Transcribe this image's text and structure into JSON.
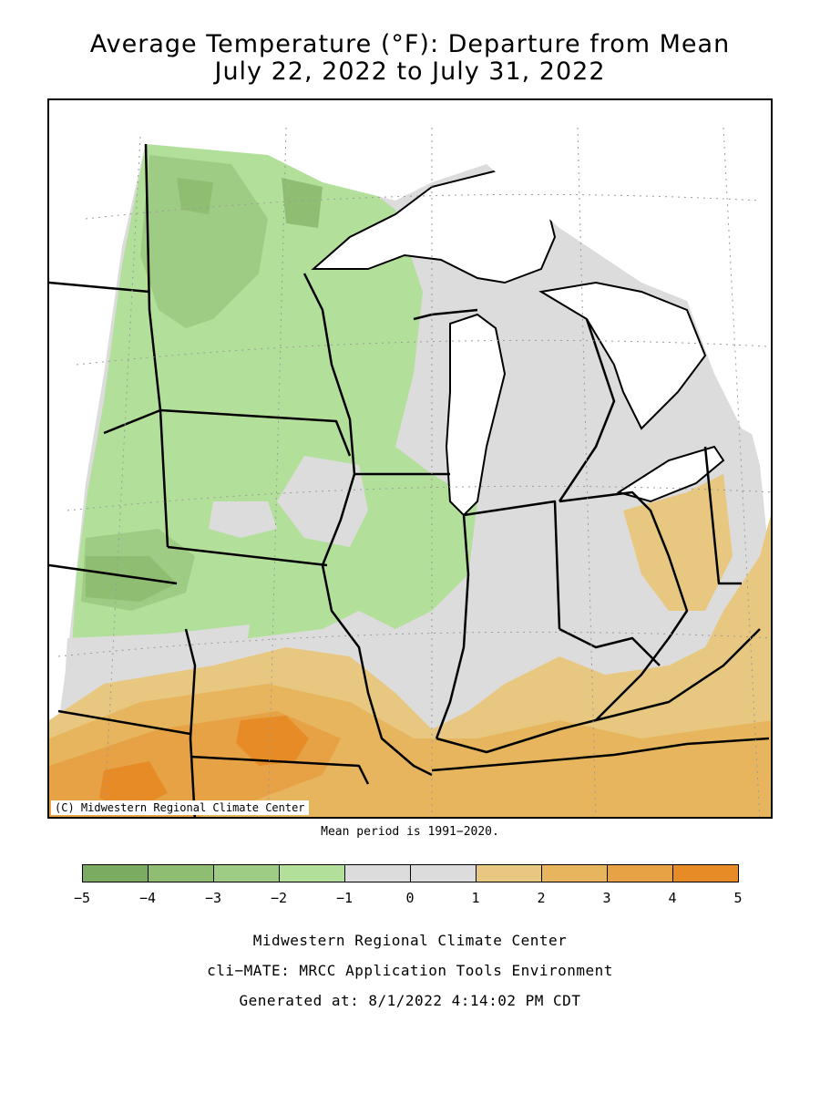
{
  "title": {
    "line1": "Average Temperature (°F): Departure from Mean",
    "line2": "July 22, 2022 to July 31, 2022"
  },
  "map": {
    "copyright": "(C) Midwestern Regional Climate Center",
    "region": "Upper Midwest / Great Lakes",
    "water_color": "#ffffff",
    "boundary_color": "#000000"
  },
  "mean_note": "Mean period is 1991−2020.",
  "legend": {
    "bins": [
      {
        "from": -5,
        "to": -4,
        "color": "#7aab60"
      },
      {
        "from": -4,
        "to": -3,
        "color": "#8fbe72"
      },
      {
        "from": -3,
        "to": -2,
        "color": "#9fcc84"
      },
      {
        "from": -2,
        "to": -1,
        "color": "#b2e09a"
      },
      {
        "from": -1,
        "to": 0,
        "color": "#dcdcdc"
      },
      {
        "from": 0,
        "to": 1,
        "color": "#dcdcdc"
      },
      {
        "from": 1,
        "to": 2,
        "color": "#e8c880"
      },
      {
        "from": 2,
        "to": 3,
        "color": "#e6b55e"
      },
      {
        "from": 3,
        "to": 4,
        "color": "#e7a246"
      },
      {
        "from": 4,
        "to": 5,
        "color": "#e68b26"
      }
    ],
    "ticks": [
      "−5",
      "−4",
      "−3",
      "−2",
      "−1",
      "0",
      "1",
      "2",
      "3",
      "4",
      "5"
    ]
  },
  "footer": {
    "line1": "Midwestern Regional Climate Center",
    "line2": "cli−MATE: MRCC Application Tools Environment",
    "line3": "Generated at: 8/1/2022 4:14:02 PM CDT"
  }
}
